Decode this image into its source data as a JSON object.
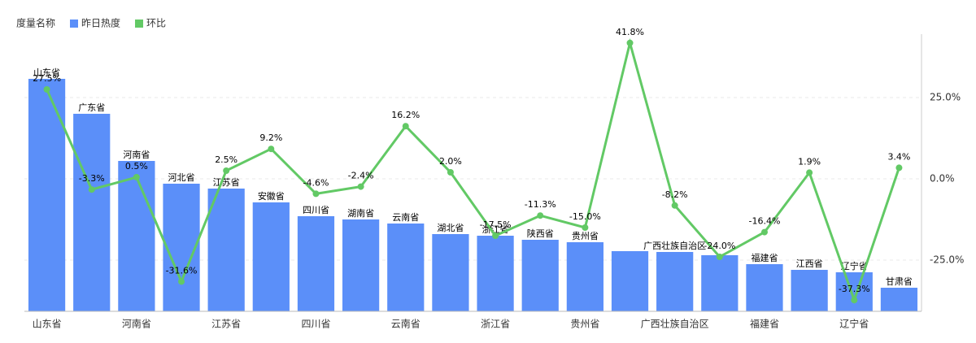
{
  "chart_data": {
    "type": "bar-line",
    "legend_title": "度量名称",
    "categories": [
      "山东省",
      "广东省",
      "河南省",
      "河北省",
      "江苏省",
      "安徽省",
      "四川省",
      "湖南省",
      "云南省",
      "湖北省",
      "浙江省",
      "陕西省",
      "贵州省",
      null,
      "广西壮族自治区",
      null,
      "福建省",
      "江西省",
      "辽宁省",
      "甘肃省"
    ],
    "series": [
      {
        "name": "昨日热度",
        "type": "bar",
        "color": "#5b8ff9",
        "values": [
          286,
          243,
          185,
          157,
          151,
          134,
          117,
          113,
          108,
          95,
          93,
          88,
          85,
          74,
          73,
          69,
          58,
          51,
          48,
          29
        ]
      },
      {
        "name": "环比",
        "type": "line",
        "axis": "y2",
        "color": "#62c965",
        "values": [
          27.5,
          -3.3,
          0.5,
          -31.6,
          2.5,
          9.2,
          -4.6,
          -2.4,
          16.2,
          2.0,
          -17.5,
          -11.3,
          -15.0,
          41.8,
          -8.2,
          -24.0,
          -16.4,
          1.9,
          -37.3,
          3.4
        ],
        "value_labels": [
          "27.5%",
          "-3.3%",
          "0.5%",
          "-31.6%",
          "2.5%",
          "9.2%",
          "-4.6%",
          "-2.4%",
          "16.2%",
          "2.0%",
          "-17.5%",
          "-11.3%",
          "-15.0%",
          "41.8%",
          "-8.2%",
          "-24.0%",
          "-16.4%",
          "1.9%",
          "-37.3%",
          "3.4%"
        ]
      }
    ],
    "ylim": [
      0,
      341
    ],
    "y2lim": [
      -40.75,
      44.5
    ],
    "y2ticks": [
      {
        "value": 25,
        "label": "25.0%"
      },
      {
        "value": 0,
        "label": "0.0%"
      },
      {
        "value": -25,
        "label": "-25.0%"
      }
    ],
    "grid": true
  }
}
